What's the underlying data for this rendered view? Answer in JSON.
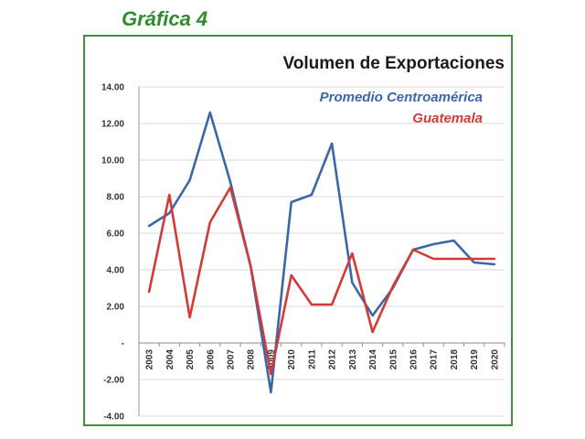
{
  "figure_label": "Gráfica 4",
  "colors": {
    "frame": "#3f9140",
    "label": "#2e8b2e",
    "centroamerica": "#3a67a8",
    "guatemala": "#d23a3a"
  },
  "chart_data": {
    "type": "line",
    "title": "Volumen de Exportaciones",
    "xlabel": "",
    "ylabel": "",
    "categories": [
      "2003",
      "2004",
      "2005",
      "2006",
      "2007",
      "2008",
      "2009",
      "2010",
      "2011",
      "2012",
      "2013",
      "2014",
      "2015",
      "2016",
      "2017",
      "2018",
      "2019",
      "2020"
    ],
    "ylim": [
      -4,
      14
    ],
    "yticks": [
      -4,
      -2,
      0,
      2,
      4,
      6,
      8,
      10,
      12,
      14
    ],
    "ytick_labels": [
      "-4.00",
      "-2.00",
      "-",
      "2.00",
      "4.00",
      "6.00",
      "8.00",
      "10.00",
      "12.00",
      "14.00"
    ],
    "grid": true,
    "legend": "top-right",
    "series": [
      {
        "name": "Promedio Centroamérica",
        "color": "#3a67a8",
        "values": [
          6.4,
          7.1,
          8.9,
          12.6,
          8.8,
          4.2,
          -2.7,
          7.7,
          8.1,
          10.9,
          3.3,
          1.5,
          3.0,
          5.1,
          5.4,
          5.6,
          4.4,
          4.3
        ]
      },
      {
        "name": "Guatemala",
        "color": "#d23a3a",
        "values": [
          2.8,
          8.1,
          1.4,
          6.6,
          8.5,
          4.2,
          -1.7,
          3.7,
          2.1,
          2.1,
          4.9,
          0.6,
          3.1,
          5.1,
          4.6,
          4.6,
          4.6,
          4.6
        ]
      }
    ]
  }
}
